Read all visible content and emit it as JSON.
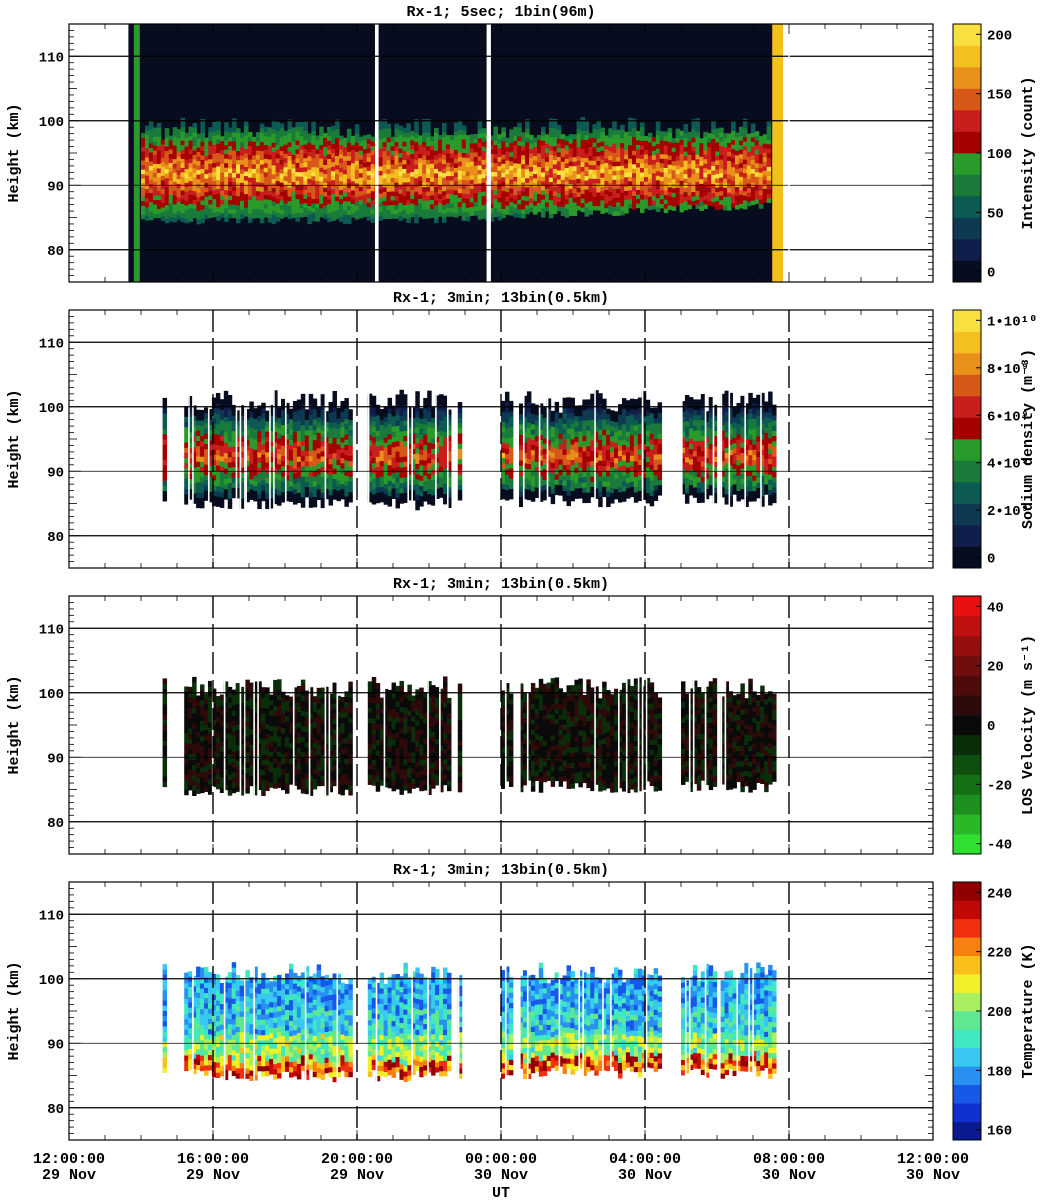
{
  "chart_data": [
    {
      "type": "heatmap",
      "title": "Rx-1;  5sec; 1bin(96m)",
      "ylabel": "Height (km)",
      "ylim": [
        75,
        115
      ],
      "yticks": [
        80,
        90,
        100,
        110
      ],
      "colorbar": {
        "label": "Intensity (count)",
        "ticks": [
          "0",
          "50",
          "100",
          "150",
          "200"
        ],
        "colors": [
          "#070c1e",
          "#0f1e4a",
          "#0d3a52",
          "#0c5a52",
          "#1a7a3c",
          "#2a9a2a",
          "#a50000",
          "#c81e1e",
          "#d8581a",
          "#e8901a",
          "#f4c020",
          "#f8e040"
        ]
      },
      "features": {
        "data_start": "14:00:00",
        "data_end": "07:50:00",
        "layer_peak_km": 92,
        "vertical_dashed_times": [
          "08:00:00"
        ]
      }
    },
    {
      "type": "heatmap",
      "title": "Rx-1; 3min; 13bin(0.5km)",
      "ylabel": "Height (km)",
      "ylim": [
        75,
        115
      ],
      "yticks": [
        80,
        90,
        100,
        110
      ],
      "colorbar": {
        "label": "Sodium density (m⁻³)",
        "ticks": [
          "0",
          "2•10⁹",
          "4•10⁹",
          "6•10⁹",
          "8•10⁹",
          "1•10¹⁰"
        ],
        "colors": [
          "#070c1e",
          "#0f1e4a",
          "#0d3a52",
          "#0c5a52",
          "#1a7a3c",
          "#2a9a2a",
          "#a50000",
          "#c81e1e",
          "#d8581a",
          "#e8901a",
          "#f4c020",
          "#f8e040"
        ]
      },
      "features": {
        "vertical_dashed_times": [
          "16:00:00",
          "20:00:00",
          "00:00:00",
          "04:00:00",
          "08:00:00"
        ]
      }
    },
    {
      "type": "heatmap",
      "title": "Rx-1; 3min; 13bin(0.5km)",
      "ylabel": "Height (km)",
      "ylim": [
        75,
        115
      ],
      "yticks": [
        80,
        90,
        100,
        110
      ],
      "colorbar": {
        "label": "LOS Velocity (m s⁻¹)",
        "ticks": [
          "-40",
          "-20",
          "0",
          "20",
          "40"
        ],
        "colors": [
          "#30e030",
          "#28b828",
          "#1e8f1e",
          "#157015",
          "#0e4e0e",
          "#0a2e0a",
          "#0a0a0a",
          "#2e0a0a",
          "#4e0b0b",
          "#700d0d",
          "#960e0e",
          "#c00f0f",
          "#e81010"
        ]
      },
      "features": {
        "vertical_dashed_times": [
          "16:00:00",
          "20:00:00",
          "00:00:00",
          "04:00:00",
          "08:00:00"
        ]
      }
    },
    {
      "type": "heatmap",
      "title": "Rx-1; 3min; 13bin(0.5km)",
      "ylabel": "Height (km)",
      "xlabel": "UT",
      "ylim": [
        75,
        115
      ],
      "yticks": [
        80,
        90,
        100,
        110
      ],
      "colorbar": {
        "label": "Temperature (K)",
        "ticks": [
          "160",
          "180",
          "200",
          "220",
          "240"
        ],
        "colors": [
          "#0a1a90",
          "#1030d0",
          "#1858e8",
          "#2890f0",
          "#38c8f0",
          "#40e8c0",
          "#60e890",
          "#a8f060",
          "#f0f028",
          "#f8c018",
          "#f88010",
          "#f03010",
          "#c00808",
          "#900000"
        ]
      },
      "features": {
        "vertical_dashed_times": [
          "16:00:00",
          "20:00:00",
          "00:00:00",
          "04:00:00",
          "08:00:00"
        ]
      }
    }
  ],
  "x_axis": {
    "label": "UT",
    "xlim_hours": [
      12,
      36
    ],
    "ticks": [
      {
        "time": "12:00:00",
        "date": "29 Nov",
        "hours": 12
      },
      {
        "time": "16:00:00",
        "date": "29 Nov",
        "hours": 16
      },
      {
        "time": "20:00:00",
        "date": "29 Nov",
        "hours": 20
      },
      {
        "time": "00:00:00",
        "date": "30 Nov",
        "hours": 24
      },
      {
        "time": "04:00:00",
        "date": "30 Nov",
        "hours": 28
      },
      {
        "time": "08:00:00",
        "date": "30 Nov",
        "hours": 32
      },
      {
        "time": "12:00:00",
        "date": "30 Nov",
        "hours": 36
      }
    ]
  }
}
